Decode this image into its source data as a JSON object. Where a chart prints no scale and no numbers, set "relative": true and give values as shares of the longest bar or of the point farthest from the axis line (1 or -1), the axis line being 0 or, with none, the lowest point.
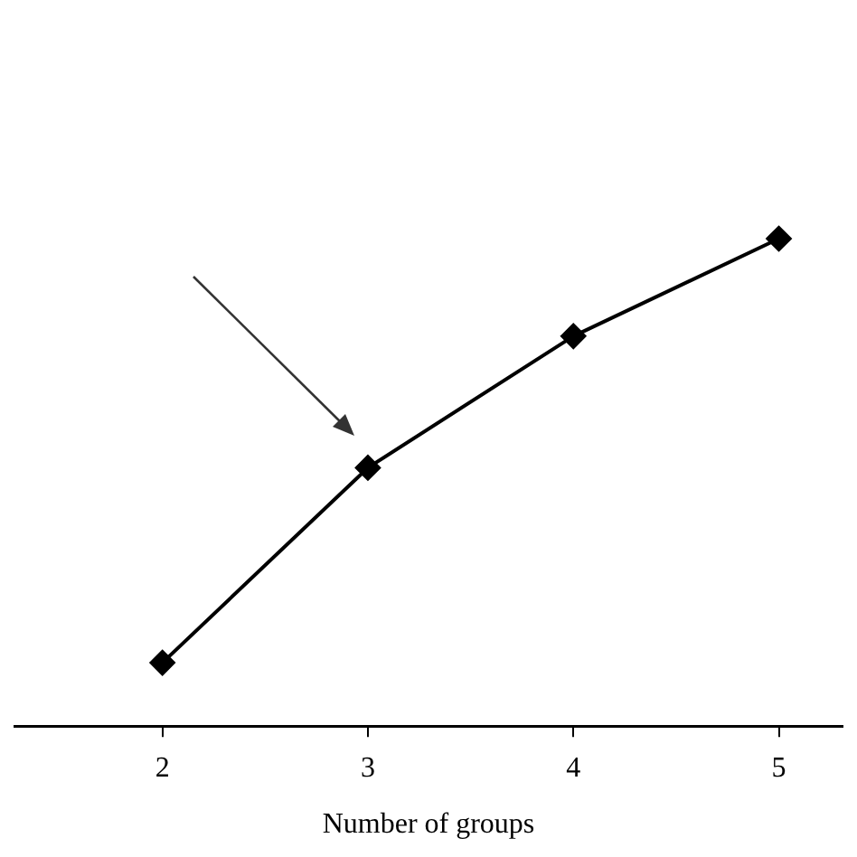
{
  "chart_data": {
    "type": "line",
    "xlabel": "Number of groups",
    "relative": true,
    "x": [
      2,
      3,
      4,
      5
    ],
    "series": [
      {
        "color": "#000000",
        "values": [
          0.13,
          0.53,
          0.8,
          1.0
        ]
      }
    ],
    "xlim": [
      1.28,
      5.31
    ],
    "xticks": [
      2,
      3,
      4,
      5
    ],
    "marker": "diamond",
    "line_style": "solid",
    "grid": false
  }
}
